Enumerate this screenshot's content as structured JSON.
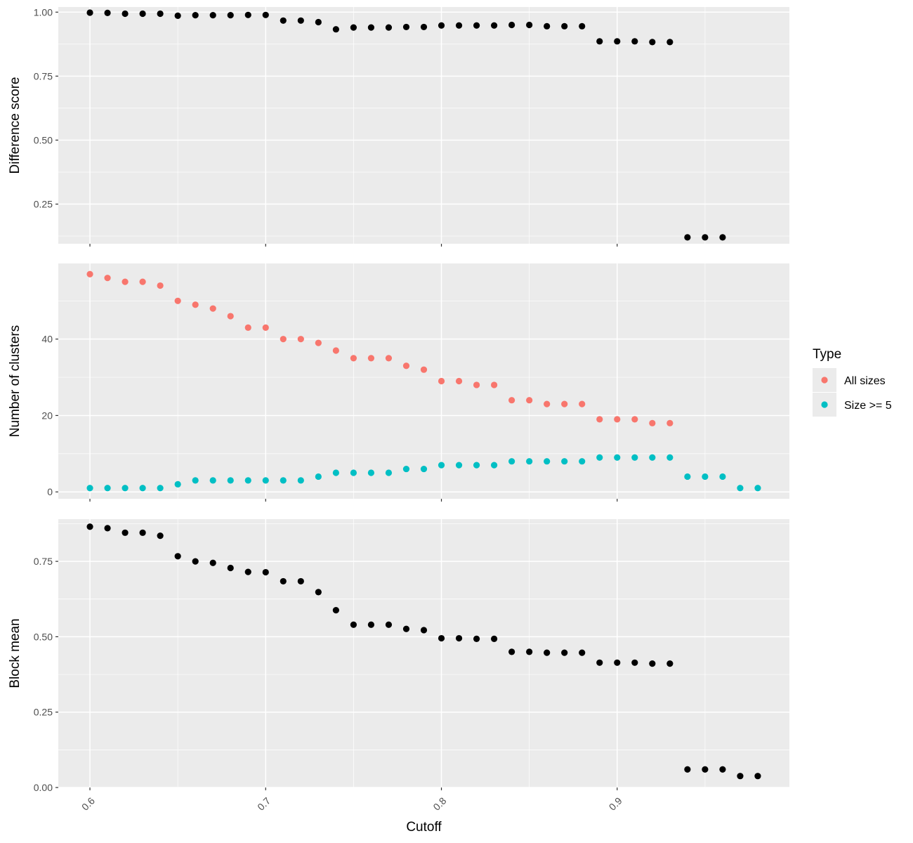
{
  "chart_data": [
    {
      "type": "scatter",
      "panel": "top",
      "ylabel": "Difference score",
      "xlabel": "",
      "xlim": [
        0.582,
        0.998
      ],
      "ylim": [
        0.095,
        1.02
      ],
      "grid": true,
      "x_ticks": [
        0.6,
        0.7,
        0.8,
        0.9
      ],
      "y_ticks": [
        0.25,
        0.5,
        0.75,
        1.0
      ],
      "y_tick_labels": [
        "0.25",
        "0.50",
        "0.75",
        "1.00"
      ],
      "series": [
        {
          "color": "#000000",
          "x": [
            0.6,
            0.61,
            0.62,
            0.63,
            0.64,
            0.65,
            0.66,
            0.67,
            0.68,
            0.69,
            0.7,
            0.71,
            0.72,
            0.73,
            0.74,
            0.75,
            0.76,
            0.77,
            0.78,
            0.79,
            0.8,
            0.81,
            0.82,
            0.83,
            0.84,
            0.85,
            0.86,
            0.87,
            0.88,
            0.89,
            0.9,
            0.91,
            0.92,
            0.93,
            0.94,
            0.95,
            0.96
          ],
          "y": [
            0.998,
            0.997,
            0.994,
            0.994,
            0.994,
            0.986,
            0.988,
            0.988,
            0.988,
            0.989,
            0.989,
            0.967,
            0.967,
            0.961,
            0.933,
            0.94,
            0.94,
            0.94,
            0.942,
            0.942,
            0.948,
            0.948,
            0.948,
            0.948,
            0.95,
            0.95,
            0.945,
            0.945,
            0.945,
            0.886,
            0.886,
            0.886,
            0.883,
            0.883,
            0.12,
            0.12,
            0.12
          ]
        }
      ]
    },
    {
      "type": "scatter",
      "panel": "middle",
      "ylabel": "Number of clusters",
      "xlabel": "",
      "xlim": [
        0.582,
        0.998
      ],
      "ylim": [
        -1.8,
        59.8
      ],
      "grid": true,
      "x_ticks": [
        0.6,
        0.7,
        0.8,
        0.9
      ],
      "y_ticks": [
        0,
        20,
        40
      ],
      "y_tick_labels": [
        "0",
        "20",
        "40"
      ],
      "legend": {
        "title": "Type",
        "position": "right"
      },
      "series": [
        {
          "name": "All sizes",
          "color": "#F8766D",
          "x": [
            0.6,
            0.61,
            0.62,
            0.63,
            0.64,
            0.65,
            0.66,
            0.67,
            0.68,
            0.69,
            0.7,
            0.71,
            0.72,
            0.73,
            0.74,
            0.75,
            0.76,
            0.77,
            0.78,
            0.79,
            0.8,
            0.81,
            0.82,
            0.83,
            0.84,
            0.85,
            0.86,
            0.87,
            0.88,
            0.89,
            0.9,
            0.91,
            0.92,
            0.93
          ],
          "y": [
            57,
            56,
            55,
            55,
            54,
            50,
            49,
            48,
            46,
            43,
            43,
            40,
            40,
            39,
            37,
            35,
            35,
            35,
            33,
            32,
            29,
            29,
            28,
            28,
            24,
            24,
            23,
            23,
            23,
            19,
            19,
            19,
            18,
            18
          ]
        },
        {
          "name": "Size >= 5",
          "color": "#00BFC4",
          "x": [
            0.6,
            0.61,
            0.62,
            0.63,
            0.64,
            0.65,
            0.66,
            0.67,
            0.68,
            0.69,
            0.7,
            0.71,
            0.72,
            0.73,
            0.74,
            0.75,
            0.76,
            0.77,
            0.78,
            0.79,
            0.8,
            0.81,
            0.82,
            0.83,
            0.84,
            0.85,
            0.86,
            0.87,
            0.88,
            0.89,
            0.9,
            0.91,
            0.92,
            0.93,
            0.94,
            0.95,
            0.96,
            0.97,
            0.98
          ],
          "y": [
            1,
            1,
            1,
            1,
            1,
            2,
            3,
            3,
            3,
            3,
            3,
            3,
            3,
            4,
            5,
            5,
            5,
            5,
            6,
            6,
            7,
            7,
            7,
            7,
            8,
            8,
            8,
            8,
            8,
            9,
            9,
            9,
            9,
            9,
            4,
            4,
            4,
            1,
            1
          ]
        }
      ]
    },
    {
      "type": "scatter",
      "panel": "bottom",
      "ylabel": "Block mean",
      "xlabel": "Cutoff",
      "xlim": [
        0.582,
        0.998
      ],
      "ylim": [
        0.0,
        0.89
      ],
      "grid": true,
      "x_ticks": [
        0.6,
        0.7,
        0.8,
        0.9
      ],
      "x_tick_labels": [
        "0.6",
        "0.7",
        "0.8",
        "0.9"
      ],
      "y_ticks": [
        0.0,
        0.25,
        0.5,
        0.75
      ],
      "y_tick_labels": [
        "0.00",
        "0.25",
        "0.50",
        "0.75"
      ],
      "series": [
        {
          "color": "#000000",
          "x": [
            0.6,
            0.61,
            0.62,
            0.63,
            0.64,
            0.65,
            0.66,
            0.67,
            0.68,
            0.69,
            0.7,
            0.71,
            0.72,
            0.73,
            0.74,
            0.75,
            0.76,
            0.77,
            0.78,
            0.79,
            0.8,
            0.81,
            0.82,
            0.83,
            0.84,
            0.85,
            0.86,
            0.87,
            0.88,
            0.89,
            0.9,
            0.91,
            0.92,
            0.93,
            0.94,
            0.95,
            0.96,
            0.97,
            0.98
          ],
          "y": [
            0.865,
            0.86,
            0.845,
            0.845,
            0.835,
            0.767,
            0.75,
            0.745,
            0.728,
            0.715,
            0.714,
            0.684,
            0.684,
            0.648,
            0.588,
            0.54,
            0.54,
            0.54,
            0.526,
            0.522,
            0.495,
            0.495,
            0.493,
            0.493,
            0.45,
            0.45,
            0.447,
            0.447,
            0.447,
            0.414,
            0.414,
            0.414,
            0.411,
            0.411,
            0.06,
            0.06,
            0.06,
            0.038,
            0.038
          ]
        }
      ]
    }
  ]
}
